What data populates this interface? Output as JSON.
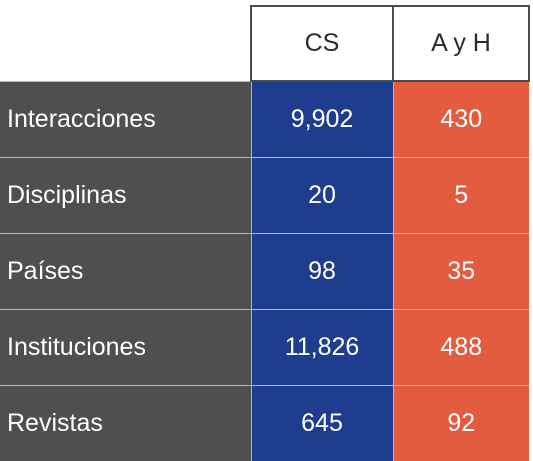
{
  "table": {
    "columns": [
      "CS",
      "A y H"
    ],
    "rows": [
      {
        "label": "Interacciones",
        "cs": "9,902",
        "ayh": "430"
      },
      {
        "label": "Disciplinas",
        "cs": "20",
        "ayh": "5"
      },
      {
        "label": "Países",
        "cs": "98",
        "ayh": "35"
      },
      {
        "label": "Instituciones",
        "cs": "11,826",
        "ayh": "488"
      },
      {
        "label": "Revistas",
        "cs": "645",
        "ayh": "92"
      }
    ]
  },
  "colors": {
    "label_bg": "#4f4f4d",
    "cs_bg": "#1f3d8f",
    "ayh_bg": "#e45c3f",
    "header_border": "#4b4b4b"
  }
}
